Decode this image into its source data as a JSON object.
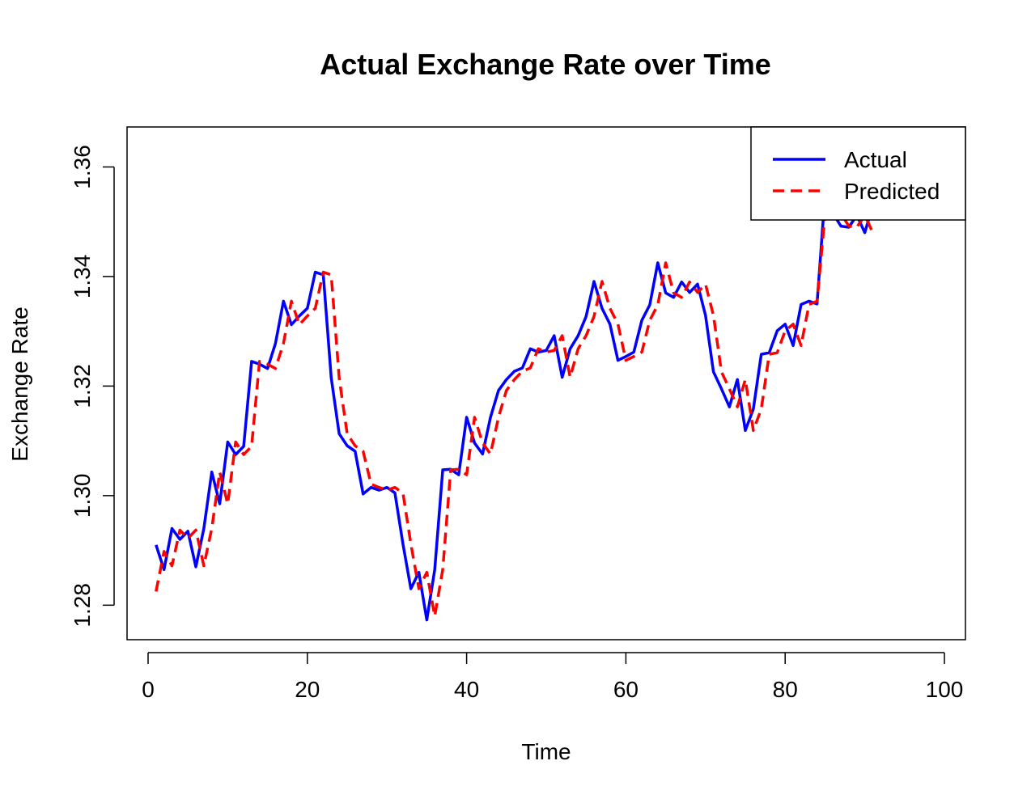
{
  "chart_data": {
    "type": "line",
    "title": "Actual Exchange Rate over Time",
    "xlabel": "Time",
    "ylabel": "Exchange Rate",
    "xlim": [
      -2.64,
      102.64
    ],
    "ylim": [
      1.2737,
      1.3673
    ],
    "xticks": [
      0,
      20,
      40,
      60,
      80,
      100
    ],
    "yticks": [
      1.28,
      1.3,
      1.32,
      1.34,
      1.36
    ],
    "xtick_labels": [
      "0",
      "20",
      "40",
      "60",
      "80",
      "100"
    ],
    "ytick_labels": [
      "1.28",
      "1.30",
      "1.32",
      "1.34",
      "1.36"
    ],
    "grid": false,
    "legend_position": "top-right",
    "series": [
      {
        "name": "Actual",
        "color": "#0000ff",
        "dash": "solid",
        "x": [
          1,
          2,
          3,
          4,
          5,
          6,
          7,
          8,
          9,
          10,
          11,
          12,
          13,
          14,
          15,
          16,
          17,
          18,
          19,
          20,
          21,
          22,
          23,
          24,
          25,
          26,
          27,
          28,
          29,
          30,
          31,
          32,
          33,
          34,
          35,
          36,
          37,
          38,
          39,
          40,
          41,
          42,
          43,
          44,
          45,
          46,
          47,
          48,
          49,
          50,
          51,
          52,
          53,
          54,
          55,
          56,
          57,
          58,
          59,
          60,
          61,
          62,
          63,
          64,
          65,
          66,
          67,
          68,
          69,
          70,
          71,
          72,
          73,
          74,
          75,
          76,
          77,
          78,
          79,
          80,
          81,
          82,
          83,
          84,
          85,
          86,
          87,
          88,
          89,
          90,
          91
        ],
        "values": [
          1.291,
          1.2865,
          1.294,
          1.292,
          1.2935,
          1.287,
          1.294,
          1.3043,
          1.2985,
          1.3098,
          1.3075,
          1.309,
          1.3245,
          1.324,
          1.3232,
          1.3278,
          1.3355,
          1.3312,
          1.3328,
          1.3342,
          1.3408,
          1.3403,
          1.3215,
          1.3113,
          1.3091,
          1.3081,
          1.3003,
          1.3015,
          1.301,
          1.3015,
          1.3005,
          1.2912,
          1.283,
          1.286,
          1.2773,
          1.2865,
          1.3047,
          1.3048,
          1.3038,
          1.3143,
          1.3096,
          1.3076,
          1.3143,
          1.3192,
          1.3212,
          1.3227,
          1.3233,
          1.3268,
          1.3262,
          1.3265,
          1.3292,
          1.3216,
          1.3268,
          1.3292,
          1.3327,
          1.3391,
          1.3342,
          1.3313,
          1.3247,
          1.3254,
          1.3262,
          1.332,
          1.3348,
          1.3425,
          1.337,
          1.3362,
          1.339,
          1.3371,
          1.3386,
          1.3329,
          1.3226,
          1.3195,
          1.3162,
          1.3212,
          1.3119,
          1.3158,
          1.3258,
          1.3261,
          1.3301,
          1.3313,
          1.3274,
          1.3349,
          1.3355,
          1.335,
          1.3548,
          1.3515,
          1.3492,
          1.349,
          1.3512,
          1.348,
          1.353
        ]
      },
      {
        "name": "Predicted",
        "color": "#ff0000",
        "dash": "dashed",
        "x": [
          1,
          2,
          3,
          4,
          5,
          6,
          7,
          8,
          9,
          10,
          11,
          12,
          13,
          14,
          15,
          16,
          17,
          18,
          19,
          20,
          21,
          22,
          23,
          24,
          25,
          26,
          27,
          28,
          29,
          30,
          31,
          32,
          33,
          34,
          35,
          36,
          37,
          38,
          39,
          40,
          41,
          42,
          43,
          44,
          45,
          46,
          47,
          48,
          49,
          50,
          51,
          52,
          53,
          54,
          55,
          56,
          57,
          58,
          59,
          60,
          61,
          62,
          63,
          64,
          65,
          66,
          67,
          68,
          69,
          70,
          71,
          72,
          73,
          74,
          75,
          76,
          77,
          78,
          79,
          80,
          81,
          82,
          83,
          84,
          85,
          86,
          87,
          88,
          89,
          90,
          91
        ],
        "values": [
          1.2825,
          1.2898,
          1.2872,
          1.2937,
          1.2922,
          1.2937,
          1.2872,
          1.294,
          1.3043,
          1.2985,
          1.3098,
          1.3075,
          1.309,
          1.3245,
          1.324,
          1.3232,
          1.3278,
          1.3355,
          1.3312,
          1.3328,
          1.3342,
          1.3408,
          1.3403,
          1.3215,
          1.3113,
          1.3091,
          1.3081,
          1.3021,
          1.3015,
          1.301,
          1.3015,
          1.3005,
          1.2912,
          1.283,
          1.286,
          1.278,
          1.2865,
          1.3047,
          1.3048,
          1.3038,
          1.3143,
          1.3096,
          1.3076,
          1.3143,
          1.3192,
          1.3212,
          1.3227,
          1.3233,
          1.3268,
          1.3262,
          1.3265,
          1.3292,
          1.3216,
          1.3268,
          1.3292,
          1.3327,
          1.3391,
          1.3342,
          1.3313,
          1.3247,
          1.3254,
          1.3262,
          1.332,
          1.3348,
          1.3425,
          1.337,
          1.3362,
          1.339,
          1.3371,
          1.3386,
          1.3329,
          1.3226,
          1.3195,
          1.3162,
          1.3212,
          1.3119,
          1.3158,
          1.3258,
          1.3261,
          1.3301,
          1.3313,
          1.3274,
          1.3349,
          1.3355,
          1.3512,
          1.3548,
          1.3515,
          1.3492,
          1.349,
          1.3512,
          1.348
        ]
      }
    ]
  }
}
